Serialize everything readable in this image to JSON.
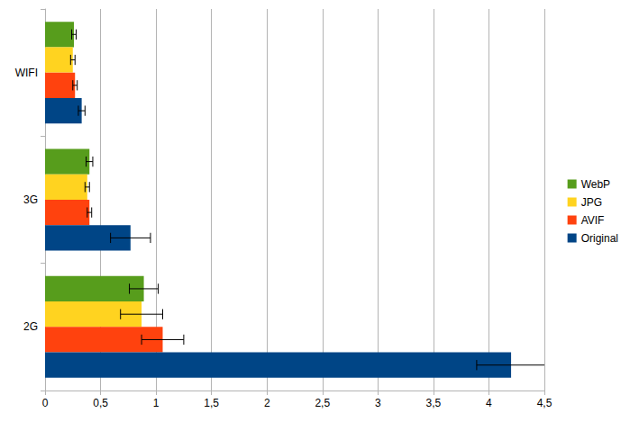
{
  "chart_data": {
    "type": "bar",
    "orientation": "horizontal",
    "categories": [
      "2G",
      "3G",
      "WIFI"
    ],
    "series": [
      {
        "name": "WebP",
        "color": "#579d1c",
        "values": [
          0.89,
          0.4,
          0.26
        ],
        "errors": [
          0.13,
          0.03,
          0.02
        ]
      },
      {
        "name": "JPG",
        "color": "#ffd320",
        "values": [
          0.87,
          0.38,
          0.25
        ],
        "errors": [
          0.19,
          0.02,
          0.02
        ]
      },
      {
        "name": "AVIF",
        "color": "#ff420e",
        "values": [
          1.06,
          0.4,
          0.27
        ],
        "errors": [
          0.19,
          0.02,
          0.02
        ]
      },
      {
        "name": "Original",
        "color": "#004586",
        "values": [
          4.2,
          0.77,
          0.33
        ],
        "errors": [
          0.31,
          0.18,
          0.03
        ]
      }
    ],
    "xlim": [
      0,
      4.5
    ],
    "xticks": [
      0,
      {
        "value": 0.5,
        "label": "0,5"
      },
      1,
      {
        "value": 1.5,
        "label": "1,5"
      },
      2,
      {
        "value": 2.5,
        "label": "2,5"
      },
      3,
      {
        "value": 3.5,
        "label": "3,5"
      },
      4,
      {
        "value": 4.5,
        "label": "4,5"
      }
    ],
    "grid": true,
    "legend": "right"
  }
}
